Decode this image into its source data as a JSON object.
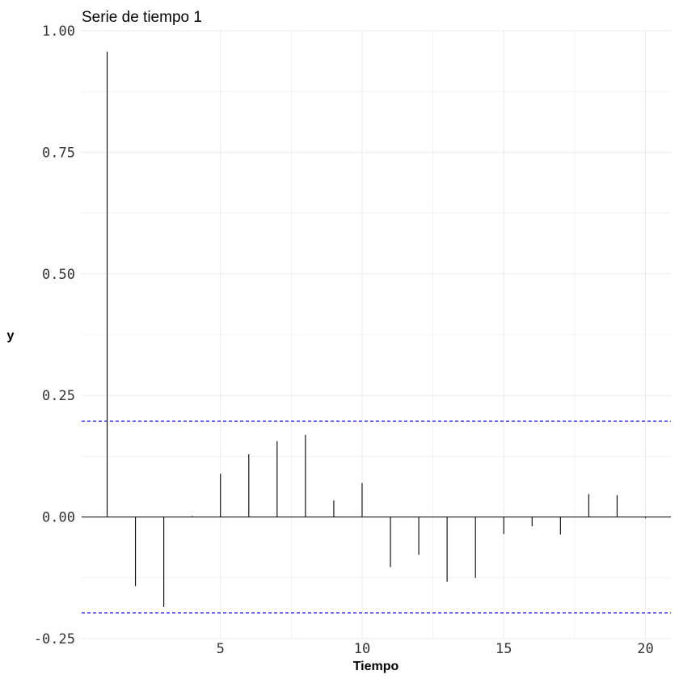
{
  "chart_data": {
    "type": "bar",
    "title": "Serie de tiempo 1",
    "xlabel": "Tiempo",
    "ylabel": "y",
    "xlim": [
      0.1,
      20.9
    ],
    "ylim": [
      -0.25,
      1.0
    ],
    "x_ticks": [
      5,
      10,
      15,
      20
    ],
    "x_tick_labels": [
      "5",
      "10",
      "15",
      "20"
    ],
    "y_ticks": [
      -0.25,
      0.0,
      0.25,
      0.5,
      0.75,
      1.0
    ],
    "y_tick_labels": [
      "-0.25",
      "0.00",
      "0.25",
      "0.50",
      "0.75",
      "1.00"
    ],
    "grid": true,
    "x": [
      1,
      2,
      3,
      4,
      5,
      6,
      7,
      8,
      9,
      10,
      11,
      12,
      13,
      14,
      15,
      16,
      17,
      18,
      19,
      20
    ],
    "values": [
      0.957,
      -0.142,
      -0.185,
      0.002,
      0.089,
      0.129,
      0.156,
      0.169,
      0.034,
      0.07,
      -0.103,
      -0.078,
      -0.133,
      -0.125,
      -0.035,
      -0.019,
      -0.036,
      0.047,
      0.045,
      -0.002
    ],
    "reference_lines": [
      0.197,
      -0.197
    ],
    "colors": {
      "lines": "#000000",
      "reference": "#0000ff",
      "grid": "#ebebeb",
      "background": "#ffffff"
    }
  }
}
